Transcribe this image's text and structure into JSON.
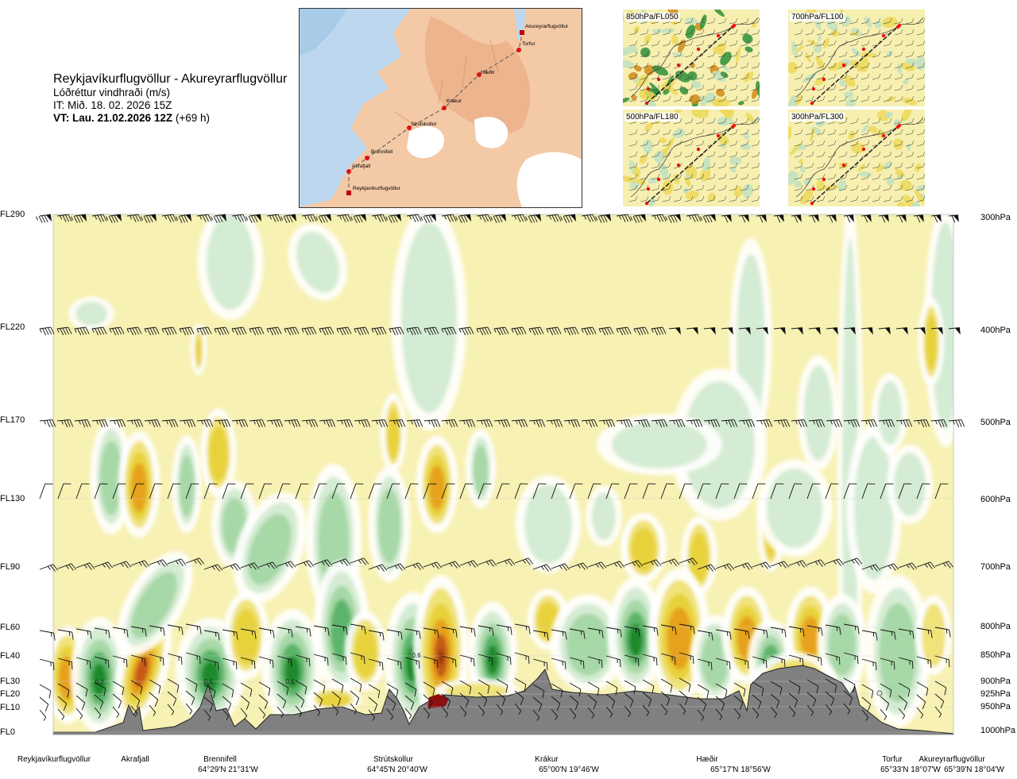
{
  "header": {
    "route": "Reykjavíkurflugvöllur - Akureyrarflugvöllur",
    "parameter": "Lóðréttur vindhraði (m/s)",
    "issue_time": "IT: Mið. 18. 02. 2026 15Z",
    "valid_prefix": "VT: Lau. 21.02.2026 12Z",
    "valid_suffix": " (+69 h)"
  },
  "route_map": {
    "labels": [
      "Akureyrarflugvöllur",
      "Torfur",
      "Hæðir",
      "Krákur",
      "Strútskollur",
      "Brennifell",
      "Akrafjall",
      "Reykjavíkurflugvöllur"
    ]
  },
  "mini_maps": [
    {
      "title": "850hPa/FL050"
    },
    {
      "title": "700hPa/FL100"
    },
    {
      "title": "500hPa/FL180"
    },
    {
      "title": "300hPa/FL300"
    }
  ],
  "colors": {
    "strong_up_dark": "#1a8a2a",
    "up_mid": "#5cb56a",
    "up_light": "#a7d8a7",
    "up_faint": "#d4ecd3",
    "neutral": "#f7f1b3",
    "down_faint": "#f0e37a",
    "down_light": "#e8d23a",
    "down_mid": "#e6a21e",
    "down_strong": "#c45a12",
    "down_max": "#8b2d10",
    "terrain": "#808080"
  },
  "chart_data": {
    "type": "heatmap",
    "title": "Lóðréttur vindhraði (m/s)",
    "flight_levels": [
      "FL290",
      "FL220",
      "FL170",
      "FL130",
      "FL90",
      "FL60",
      "FL40",
      "FL30",
      "FL20",
      "FL10",
      "FL0"
    ],
    "pressure_levels": [
      "300hPa",
      "400hPa",
      "500hPa",
      "600hPa",
      "700hPa",
      "800hPa",
      "850hPa",
      "900hPa",
      "925hPa",
      "950hPa",
      "1000hPa"
    ],
    "waypoints": [
      {
        "name": "Reykjavíkurflugvöllur",
        "coord": ""
      },
      {
        "name": "Akrafjall",
        "coord": ""
      },
      {
        "name": "Brennifell",
        "coord": "64°29'N 21°31'W"
      },
      {
        "name": "Strútskollur",
        "coord": "64°45'N 20°40'W"
      },
      {
        "name": "Krákur",
        "coord": "65°00'N 19°46'W"
      },
      {
        "name": "Hæðir",
        "coord": "65°17'N 18°56'W"
      },
      {
        "name": "Torfur",
        "coord": "65°33'N 18°07'W"
      },
      {
        "name": "Akureyrarflugvöllur",
        "coord": "65°39'N 18°04'W"
      }
    ],
    "value_labels": [
      "0.7",
      "0.6",
      "0.6",
      "0.6"
    ]
  }
}
